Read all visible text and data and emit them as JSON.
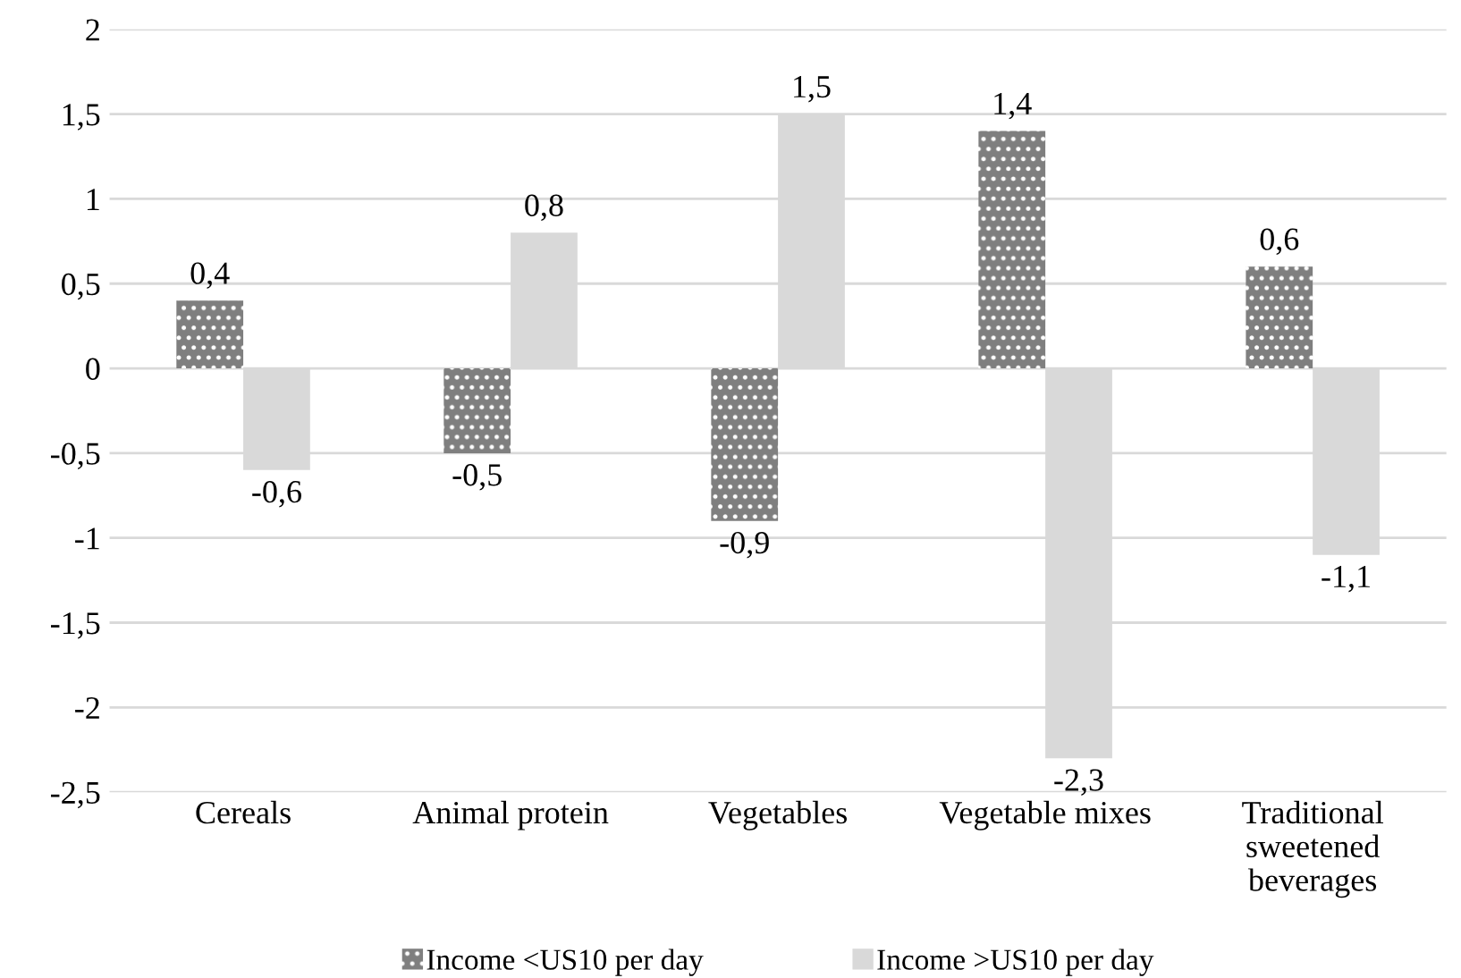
{
  "chart_data": {
    "type": "bar",
    "categories": [
      "Cereals",
      "Animal protein",
      "Vegetables",
      "Vegetable mixes",
      "Traditional\nsweetened\nbeverages"
    ],
    "series": [
      {
        "name": "Income <US10 per day",
        "color": "#7f7f7f",
        "values": [
          0.4,
          -0.5,
          -0.9,
          1.4,
          0.6
        ],
        "value_labels": [
          "0,4",
          "-0,5",
          "-0,9",
          "1,4",
          "0,6"
        ]
      },
      {
        "name": "Income >US10 per day",
        "color": "#d9d9d9",
        "values": [
          -0.6,
          0.8,
          1.5,
          -2.3,
          -1.1
        ],
        "value_labels": [
          "-0,6",
          "0,8",
          "1,5",
          "-2,3",
          "-1,1"
        ]
      }
    ],
    "ylim": [
      -2.5,
      2
    ],
    "yticks": [
      {
        "value": -2.5,
        "label": "-2,5"
      },
      -2,
      {
        "value": -1.5,
        "label": "-1,5"
      },
      -1,
      {
        "value": -0.5,
        "label": "-0,5"
      },
      0,
      {
        "value": 0.5,
        "label": "0,5"
      },
      1,
      {
        "value": 1.5,
        "label": "1,5"
      },
      2
    ],
    "grid": "y",
    "legend": "bottom"
  }
}
